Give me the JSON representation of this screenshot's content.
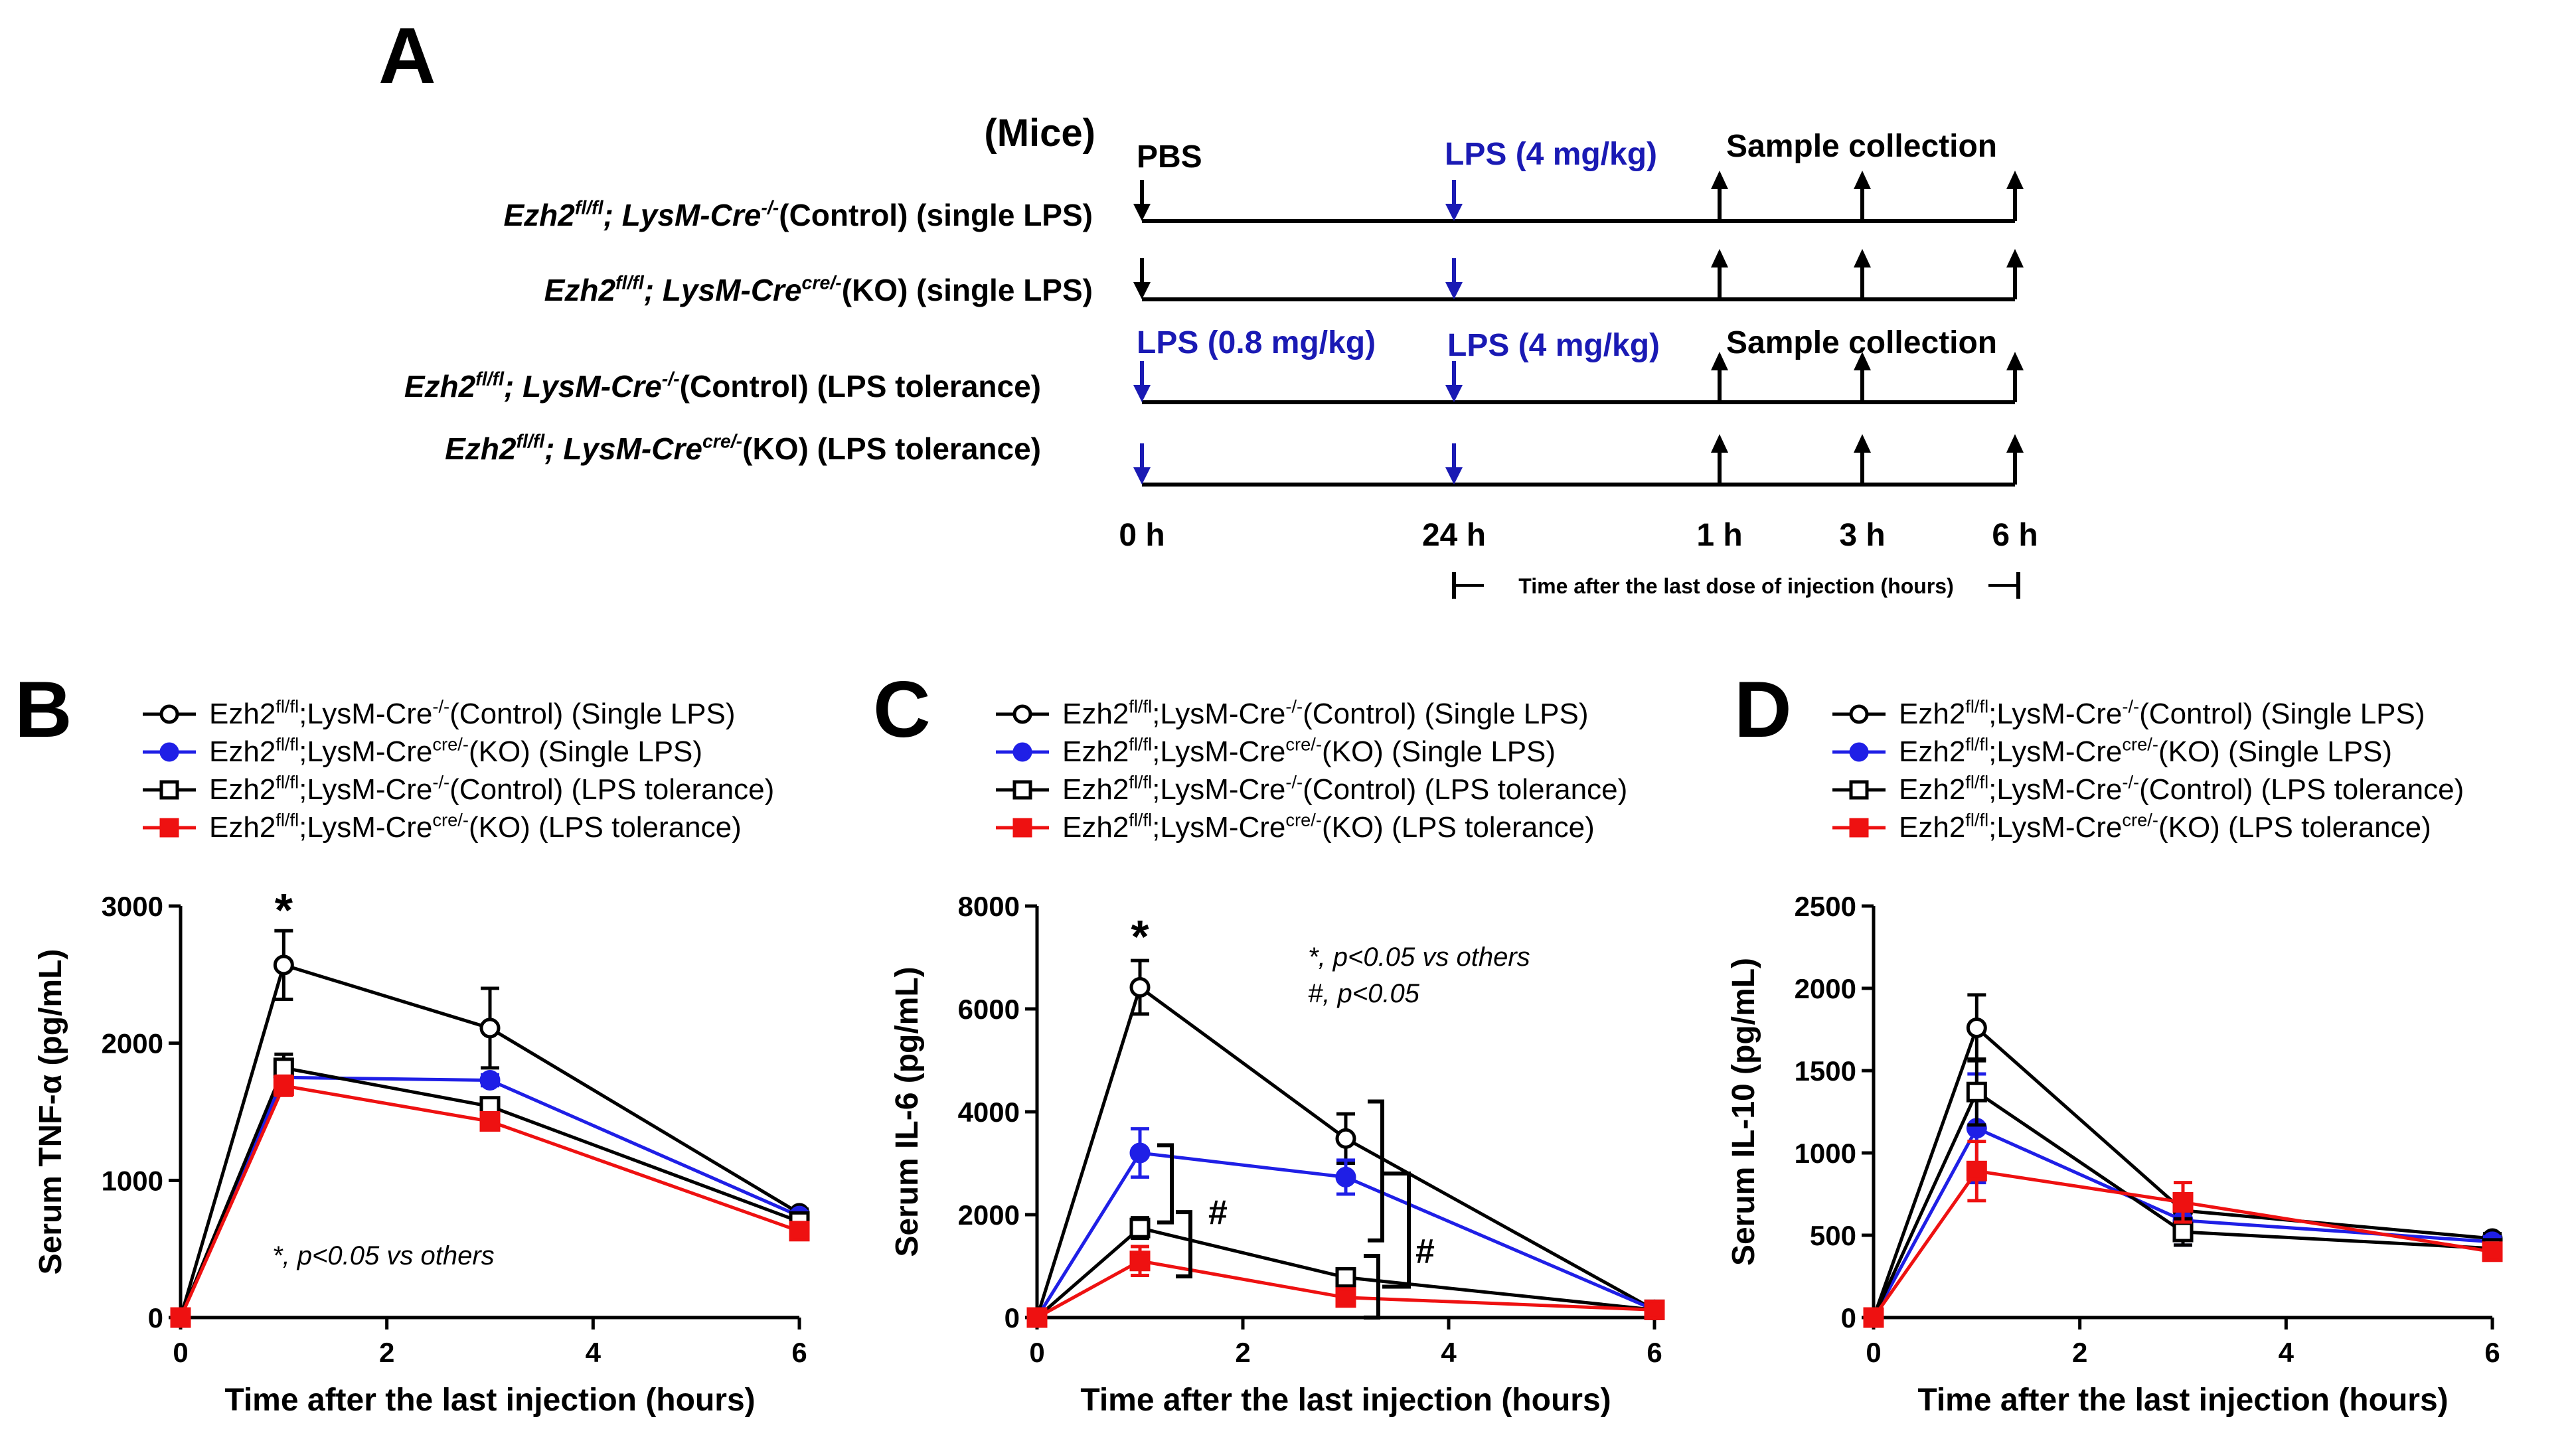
{
  "colors": {
    "black": "#000000",
    "blue": "#1f1fe6",
    "red": "#ee1111",
    "dark_blue": "#1a1ab4"
  },
  "panel_a": {
    "letter": "A",
    "mice_label": "(Mice)",
    "pbs_label": "PBS",
    "lps_high_label": "LPS (4 mg/kg)",
    "lps_low_label": "LPS (0.8 mg/kg)",
    "sample_label": "Sample collection",
    "time_caption": "Time after the last dose of injection (hours)",
    "timepoints": [
      "0 h",
      "24 h",
      "1 h",
      "3 h",
      "6 h"
    ],
    "rows": [
      {
        "gene": "Ezh2",
        "gene_sup": "fl/fl",
        "cre": "; LysM-Cre",
        "cre_sup": "-/-",
        "desc": "(Control) (single LPS)",
        "first_injection": "PBS"
      },
      {
        "gene": "Ezh2",
        "gene_sup": "fl/fl",
        "cre": "; LysM-Cre",
        "cre_sup": "cre/-",
        "desc": "(KO) (single LPS)",
        "first_injection": "PBS"
      },
      {
        "gene": "Ezh2",
        "gene_sup": "fl/fl",
        "cre": "; LysM-Cre",
        "cre_sup": "-/-",
        "desc": "(Control) (LPS tolerance)",
        "first_injection": "LPS"
      },
      {
        "gene": "Ezh2",
        "gene_sup": "fl/fl",
        "cre": "; LysM-Cre",
        "cre_sup": "cre/-",
        "desc": "(KO) (LPS tolerance)",
        "first_injection": "LPS"
      }
    ]
  },
  "legend": [
    {
      "gene": "Ezh2",
      "gene_sup": "fl/fl",
      "cre": ";LysM-Cre",
      "cre_sup": "-/-",
      "desc": "(Control) (Single LPS)",
      "color": "#000000",
      "marker": "open-circle"
    },
    {
      "gene": "Ezh2",
      "gene_sup": "fl/fl",
      "cre": ";LysM-Cre",
      "cre_sup": "cre/-",
      "desc": "(KO) (Single LPS)",
      "color": "#1f1fe6",
      "marker": "filled-circle"
    },
    {
      "gene": "Ezh2",
      "gene_sup": "fl/fl",
      "cre": ";LysM-Cre",
      "cre_sup": "-/-",
      "desc": "(Control) (LPS tolerance)",
      "color": "#000000",
      "marker": "open-square"
    },
    {
      "gene": "Ezh2",
      "gene_sup": "fl/fl",
      "cre": ";LysM-Cre",
      "cre_sup": "cre/-",
      "desc": "(KO) (LPS tolerance)",
      "color": "#ee1111",
      "marker": "filled-square"
    }
  ],
  "chart_data": [
    {
      "panel": "B",
      "type": "line",
      "xlabel": "Time after the last injection (hours)",
      "ylabel": "Serum TNF-α (pg/mL)",
      "x": [
        0,
        1,
        3,
        6
      ],
      "xlim": [
        0,
        6
      ],
      "xticks": [
        0,
        2,
        4,
        6
      ],
      "ylim": [
        0,
        3000
      ],
      "yticks": [
        0,
        1000,
        2000,
        3000
      ],
      "series": [
        {
          "name": "Control Single LPS",
          "values": [
            0,
            2570,
            2110,
            760
          ],
          "errors": [
            0,
            250,
            290,
            30
          ]
        },
        {
          "name": "KO Single LPS",
          "values": [
            0,
            1750,
            1730,
            740
          ],
          "errors": [
            0,
            90,
            40,
            30
          ]
        },
        {
          "name": "Control LPS tolerance",
          "values": [
            0,
            1820,
            1540,
            700
          ],
          "errors": [
            0,
            100,
            60,
            30
          ]
        },
        {
          "name": "KO LPS tolerance",
          "values": [
            0,
            1690,
            1430,
            630
          ],
          "errors": [
            0,
            70,
            50,
            30
          ]
        }
      ],
      "annotations": [
        {
          "text": "*",
          "x": 1,
          "y": 3000
        },
        {
          "text": "*, p<0.05 vs others"
        }
      ]
    },
    {
      "panel": "C",
      "type": "line",
      "xlabel": "Time after the last injection (hours)",
      "ylabel": "Serum IL-6 (pg/mL)",
      "x": [
        0,
        1,
        3,
        6
      ],
      "xlim": [
        0,
        6
      ],
      "xticks": [
        0,
        2,
        4,
        6
      ],
      "ylim": [
        0,
        8000
      ],
      "yticks": [
        0,
        2000,
        4000,
        6000,
        8000
      ],
      "series": [
        {
          "name": "Control Single LPS",
          "values": [
            0,
            6420,
            3480,
            150
          ],
          "errors": [
            0,
            520,
            480,
            40
          ]
        },
        {
          "name": "KO Single LPS",
          "values": [
            0,
            3200,
            2730,
            150
          ],
          "errors": [
            0,
            470,
            330,
            40
          ]
        },
        {
          "name": "Control LPS tolerance",
          "values": [
            0,
            1740,
            780,
            150
          ],
          "errors": [
            0,
            200,
            80,
            40
          ]
        },
        {
          "name": "KO LPS tolerance",
          "values": [
            0,
            1100,
            390,
            150
          ],
          "errors": [
            0,
            280,
            50,
            40
          ]
        }
      ],
      "annotations": [
        {
          "text": "*",
          "x": 1
        },
        {
          "text": "*, p<0.05 vs others"
        },
        {
          "text": "#, p<0.05"
        },
        {
          "text": "#",
          "x": 1.5
        },
        {
          "text": "#",
          "x": 3.5
        }
      ]
    },
    {
      "panel": "D",
      "type": "line",
      "xlabel": "Time after the last injection (hours)",
      "ylabel": "Serum IL-10 (pg/mL)",
      "x": [
        0,
        1,
        3,
        6
      ],
      "xlim": [
        0,
        6
      ],
      "xticks": [
        0,
        2,
        4,
        6
      ],
      "ylim": [
        0,
        2500
      ],
      "yticks": [
        0,
        500,
        1000,
        1500,
        2000,
        2500
      ],
      "series": [
        {
          "name": "Control Single LPS",
          "values": [
            0,
            1760,
            650,
            480
          ],
          "errors": [
            0,
            200,
            60,
            30
          ]
        },
        {
          "name": "KO Single LPS",
          "values": [
            0,
            1150,
            590,
            460
          ],
          "errors": [
            0,
            330,
            150,
            30
          ]
        },
        {
          "name": "Control LPS tolerance",
          "values": [
            0,
            1370,
            520,
            420
          ],
          "errors": [
            0,
            200,
            80,
            30
          ]
        },
        {
          "name": "KO LPS tolerance",
          "values": [
            0,
            890,
            700,
            400
          ],
          "errors": [
            0,
            180,
            120,
            30
          ]
        }
      ],
      "annotations": []
    }
  ]
}
